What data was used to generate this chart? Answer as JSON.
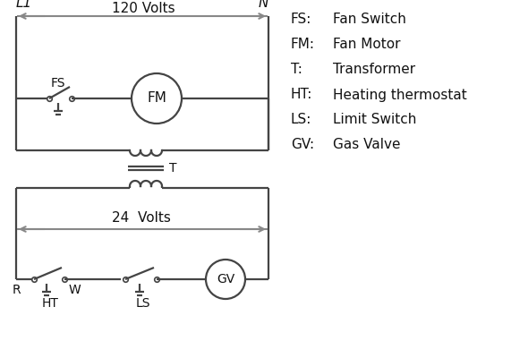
{
  "bg_color": "#ffffff",
  "line_color": "#444444",
  "gray_color": "#888888",
  "text_color": "#111111",
  "legend_items": [
    [
      "FS:",
      "Fan Switch"
    ],
    [
      "FM:",
      "Fan Motor"
    ],
    [
      "T:",
      "Transformer"
    ],
    [
      "HT:",
      "Heating thermostat"
    ],
    [
      "LS:",
      "Limit Switch"
    ],
    [
      "GV:",
      "Gas Valve"
    ]
  ]
}
